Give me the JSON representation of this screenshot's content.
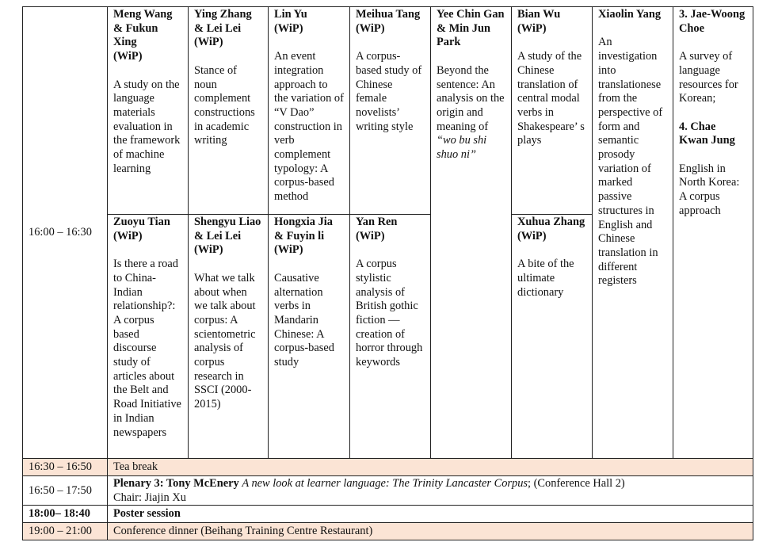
{
  "session": {
    "time": "16:00 – 16:30",
    "top_row": [
      {
        "name": "Meng Wang & Fukun Xing",
        "wip": "(WiP)",
        "title": "A study on the language materials evaluation in the framework of machine learning"
      },
      {
        "name": "Ying Zhang & Lei Lei",
        "wip": "(WiP)",
        "title": "Stance of noun complement constructions in academic writing"
      },
      {
        "name": "Lin Yu",
        "wip": "(WiP)",
        "title": "An event integration approach to the variation of “V Dao” construction in verb complement typology: A corpus-based method"
      },
      {
        "name": "Meihua Tang",
        "wip": "(WiP)",
        "title": "A corpus-based study of Chinese female novelists’ writing style"
      },
      {
        "name": "Yee Chin Gan & Min Jun Park",
        "wip": "",
        "title": "Beyond the sentence: An analysis on the origin and meaning of ",
        "title_italic": "“wo bu shi shuo ni”"
      },
      {
        "name": "Bian Wu",
        "wip": "(WiP)",
        "title": "A study of the Chinese translation of central modal verbs in Shakespeare’ s plays"
      },
      {
        "name": "Xiaolin Yang",
        "wip": "",
        "title": "An investigation into translationese from the perspective of form and semantic prosody variation of marked passive structures in English and Chinese translation in different registers"
      },
      {
        "name": "3. Jae-Woong Choe",
        "title": "A survey of language resources for Korean;",
        "name2": "4. Chae Kwan Jung",
        "title2": "English in North Korea: A corpus approach"
      }
    ],
    "bottom_row": [
      {
        "name": "Zuoyu Tian",
        "wip": "(WiP)",
        "title": "Is there a road to China-Indian relationship?: A corpus based discourse study of articles about the Belt and Road Initiative in Indian newspapers"
      },
      {
        "name": "Shengyu Liao & Lei Lei",
        "wip": "(WiP)",
        "title": "What we talk about when we talk about corpus: A scientometric analysis of corpus research in SSCI (2000-2015)"
      },
      {
        "name": "Hongxia Jia & Fuyin li",
        "wip": "(WiP)",
        "title": "Causative alternation verbs in Mandarin Chinese: A corpus-based study"
      },
      {
        "name": "Yan Ren",
        "wip": "(WiP)",
        "title": "A corpus stylistic analysis of British gothic fiction — creation of horror through keywords"
      },
      {
        "name": "Xuhua Zhang",
        "wip": "(WiP)",
        "title": "A bite of the ultimate dictionary"
      }
    ]
  },
  "rows": [
    {
      "time": "16:30 – 16:50",
      "text": "Tea break"
    },
    {
      "time": "16:50 – 17:50",
      "bold": "Plenary 3: Tony McEnery",
      "italic": "A new look at learner language: The Trinity Lancaster Corpus",
      "rest": "; (Conference Hall 2)",
      "line2": "Chair: Jiajin Xu"
    },
    {
      "time": "18:00– 18:40",
      "text": "Poster session"
    },
    {
      "time": "19:00 – 21:00",
      "text": "Conference dinner (Beihang Training Centre Restaurant)"
    }
  ],
  "colors": {
    "highlight_row": "#fbe4d5",
    "border": "#222222"
  }
}
